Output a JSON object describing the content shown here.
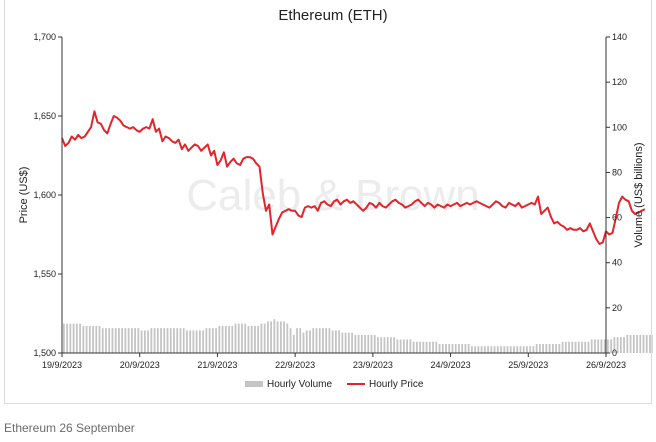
{
  "caption": "Ethereum 26 September",
  "chart_data": {
    "type": "line",
    "title": "Ethereum (ETH)",
    "watermark": "Caleb & Brown",
    "ylabel_left": "Price (US$)",
    "ylabel_right": "Volume (US$ billions)",
    "x_tick_labels": [
      "19/9/2023",
      "20/9/2023",
      "21/9/2023",
      "22/9/2023",
      "23/9/2023",
      "24/9/2023",
      "25/9/2023",
      "26/9/2023"
    ],
    "y_left_ticks": [
      "1,500",
      "1,550",
      "1,600",
      "1,650",
      "1,700"
    ],
    "y_right_ticks": [
      "0",
      "20",
      "40",
      "60",
      "80",
      "100",
      "120",
      "140"
    ],
    "ylim_left": [
      1500,
      1700
    ],
    "ylim_right": [
      0,
      140
    ],
    "colors": {
      "price": "#e3242b",
      "volume": "#c4c4c4",
      "axis": "#333333",
      "watermark": "#ececec"
    },
    "legend": {
      "placement": "bottom",
      "items": [
        "Hourly Volume",
        "Hourly Price"
      ]
    },
    "series": [
      {
        "name": "Hourly Price",
        "x_start": "19/9/2023 00:00",
        "x_step_hours": 1,
        "values": [
          1636,
          1631,
          1633,
          1637,
          1635,
          1638,
          1636,
          1637,
          1640,
          1643,
          1653,
          1646,
          1645,
          1641,
          1639,
          1645,
          1650,
          1649,
          1647,
          1644,
          1643,
          1642,
          1643,
          1641,
          1640,
          1642,
          1643,
          1642,
          1648,
          1640,
          1642,
          1634,
          1637,
          1636,
          1634,
          1633,
          1635,
          1629,
          1632,
          1628,
          1630,
          1632,
          1631,
          1628,
          1630,
          1632,
          1625,
          1628,
          1619,
          1622,
          1627,
          1618,
          1621,
          1623,
          1620,
          1619,
          1623,
          1624,
          1624,
          1623,
          1620,
          1618,
          1601,
          1590,
          1594,
          1575,
          1580,
          1585,
          1589,
          1590,
          1591,
          1590,
          1590,
          1587,
          1586,
          1592,
          1593,
          1592,
          1593,
          1590,
          1595,
          1596,
          1594,
          1593,
          1596,
          1597,
          1594,
          1596,
          1597,
          1595,
          1596,
          1594,
          1592,
          1590,
          1592,
          1595,
          1594,
          1592,
          1595,
          1593,
          1592,
          1594,
          1596,
          1597,
          1595,
          1594,
          1592,
          1593,
          1594,
          1596,
          1597,
          1595,
          1593,
          1595,
          1594,
          1592,
          1594,
          1593,
          1592,
          1594,
          1593,
          1594,
          1595,
          1593,
          1594,
          1595,
          1594,
          1595,
          1596,
          1595,
          1594,
          1593,
          1592,
          1594,
          1596,
          1595,
          1593,
          1592,
          1595,
          1594,
          1593,
          1595,
          1592,
          1593,
          1594,
          1595,
          1594,
          1599,
          1588,
          1590,
          1592,
          1586,
          1582,
          1583,
          1581,
          1580,
          1578,
          1579,
          1578,
          1578,
          1579,
          1577,
          1578,
          1582,
          1577,
          1572,
          1569,
          1570,
          1577,
          1575,
          1576,
          1585,
          1595,
          1599,
          1597,
          1596,
          1590,
          1588,
          1589,
          1590,
          1591
        ]
      },
      {
        "name": "Hourly Volume",
        "x_start": "19/9/2023 00:00",
        "x_step_hours": 1,
        "values": [
          13,
          13,
          13,
          13,
          13,
          13,
          12,
          12,
          12,
          12,
          12,
          12,
          11,
          11,
          11,
          11,
          11,
          11,
          11,
          11,
          11,
          11,
          11,
          11,
          10,
          10,
          10,
          11,
          11,
          11,
          11,
          11,
          11,
          11,
          11,
          11,
          11,
          11,
          10,
          10,
          10,
          10,
          10,
          10,
          11,
          11,
          11,
          11,
          12,
          12,
          12,
          12,
          12,
          13,
          13,
          13,
          13,
          12,
          12,
          12,
          12,
          13,
          13,
          14,
          14,
          15,
          14,
          14,
          14,
          13,
          11,
          8,
          11,
          11,
          9,
          10,
          10,
          11,
          11,
          11,
          11,
          11,
          11,
          10,
          10,
          10,
          9,
          9,
          9,
          9,
          8,
          8,
          8,
          8,
          8,
          8,
          8,
          7,
          7,
          7,
          7,
          7,
          7,
          6,
          6,
          6,
          6,
          6,
          5,
          5,
          5,
          5,
          5,
          5,
          5,
          5,
          4,
          4,
          4,
          4,
          4,
          4,
          4,
          4,
          4,
          4,
          3,
          3,
          3,
          3,
          3,
          3,
          3,
          3,
          3,
          3,
          3,
          3,
          3,
          3,
          3,
          3,
          3,
          3,
          3,
          3,
          4,
          4,
          4,
          4,
          4,
          4,
          4,
          4,
          5,
          5,
          5,
          5,
          5,
          5,
          5,
          5,
          5,
          6,
          6,
          6,
          6,
          6,
          6,
          6,
          7,
          7,
          7,
          7,
          8,
          8,
          8,
          8,
          8,
          8,
          8,
          8,
          8,
          8,
          8
        ]
      }
    ]
  }
}
